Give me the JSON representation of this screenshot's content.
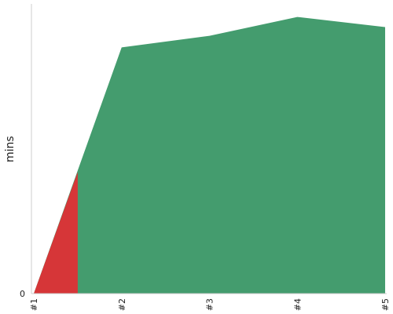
{
  "chart_data": {
    "type": "area",
    "ylabel": "mins",
    "y_tick_labels": [
      "0"
    ],
    "categories": [
      "#1",
      "#2",
      "#3",
      "#4",
      "#5"
    ],
    "ylim": [
      0,
      1
    ],
    "grid": false,
    "series": [
      {
        "values": [
          0,
          0.85,
          0.89,
          0.955,
          0.92
        ],
        "color": "#449c6e"
      },
      {
        "values": [
          0.42
        ],
        "x": [
          1.5
        ],
        "start": [
          1,
          0
        ],
        "color": "#d63638"
      }
    ],
    "axis_color": "#cccccc"
  }
}
